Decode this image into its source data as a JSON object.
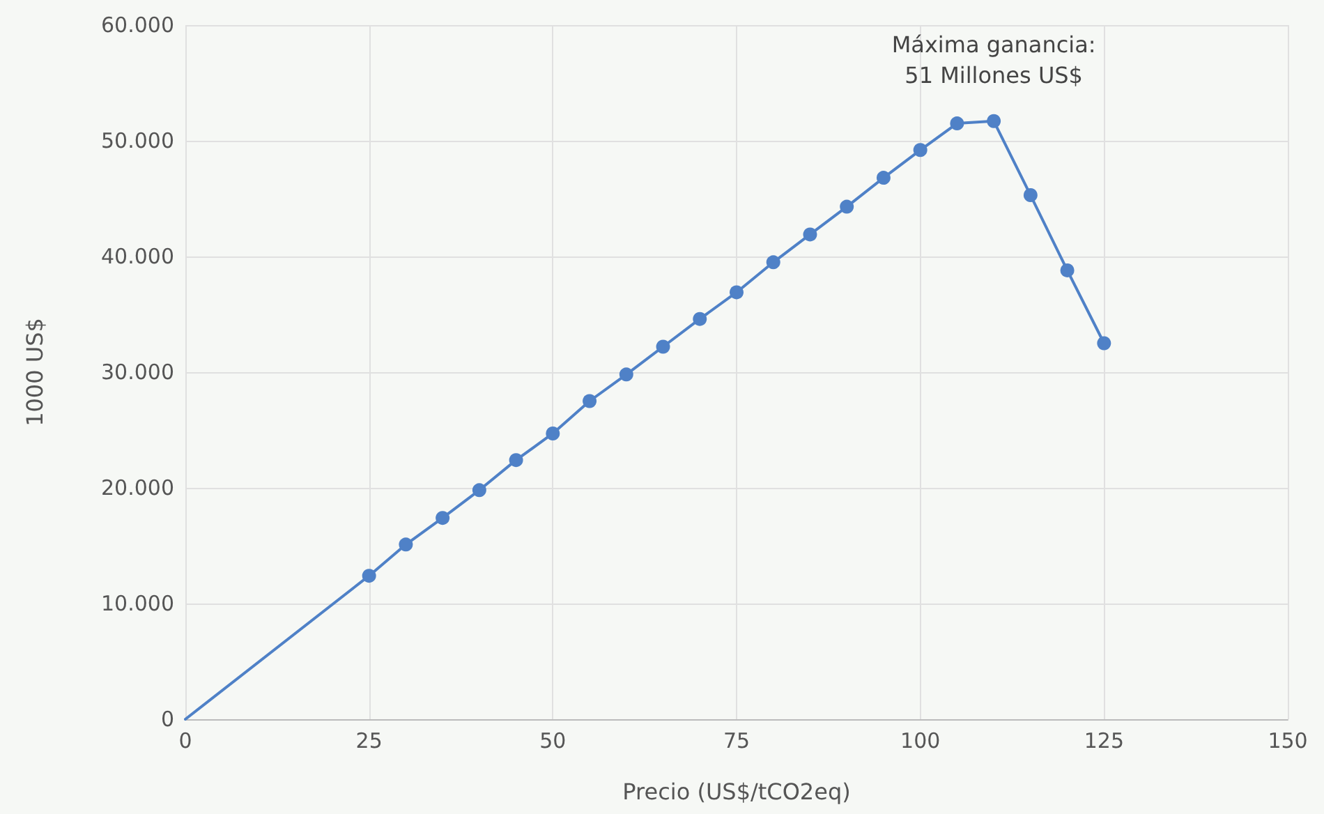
{
  "chart_data": {
    "type": "line",
    "xlabel": "Precio (US$/tCO2eq)",
    "ylabel": "1000 US$",
    "xlim": [
      0,
      150
    ],
    "xticks": [
      0,
      25,
      50,
      75,
      100,
      125,
      150
    ],
    "ylim": [
      0,
      60000
    ],
    "yticks": [
      {
        "value": 0,
        "label": "0"
      },
      {
        "value": 10000,
        "label": "10.000"
      },
      {
        "value": 20000,
        "label": "20.000"
      },
      {
        "value": 30000,
        "label": "30.000"
      },
      {
        "value": 40000,
        "label": "40.000"
      },
      {
        "value": 50000,
        "label": "50.000"
      },
      {
        "value": 60000,
        "label": "60.000"
      }
    ],
    "grid": true,
    "line_style": "solid",
    "series": [
      {
        "color": "#4f81c7",
        "x": [
          0,
          25
        ],
        "values": [
          0,
          12400
        ]
      },
      {
        "color": "#4f81c7",
        "marker": "circle",
        "x": [
          25,
          30,
          35,
          40,
          45,
          50,
          55,
          60,
          65,
          70,
          75,
          80,
          85,
          90,
          95,
          100,
          105,
          110,
          115,
          120,
          125
        ],
        "values": [
          12400,
          15100,
          17400,
          19800,
          22400,
          24700,
          27500,
          29800,
          32200,
          34600,
          36900,
          39500,
          41900,
          44300,
          46800,
          49200,
          51500,
          51700,
          45300,
          38800,
          32500
        ]
      }
    ],
    "annotations": [
      {
        "text": "Máxima ganancia:\n51 Millones US$",
        "x": 110,
        "y": 51700
      }
    ]
  }
}
